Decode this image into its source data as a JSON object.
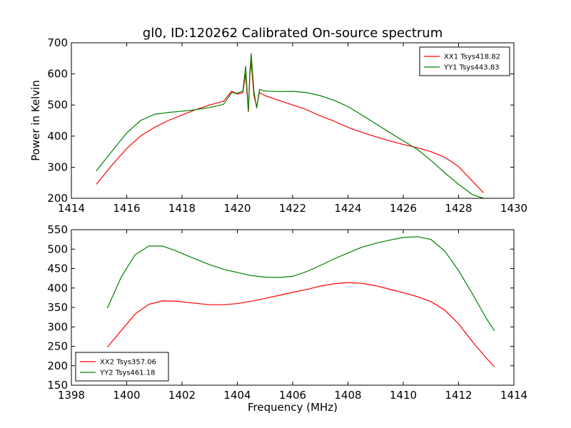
{
  "figure_title": "gl0, ID:120262 Calibrated On-source spectrum",
  "colors": {
    "red": "#ff0000",
    "green": "#008000"
  },
  "chart_data": [
    {
      "type": "line",
      "title": "gl0, ID:120262 Calibrated On-source spectrum",
      "xlabel": "",
      "ylabel": "Power in Kelvin",
      "xlim": [
        1414,
        1430
      ],
      "ylim": [
        200,
        700
      ],
      "xticks": [
        1414,
        1416,
        1418,
        1420,
        1422,
        1424,
        1426,
        1428,
        1430
      ],
      "yticks": [
        200,
        300,
        400,
        500,
        600,
        700
      ],
      "legend_position": "top-right",
      "series": [
        {
          "name": "XX1 Tsys418.82",
          "color": "#ff0000",
          "x": [
            1414.9,
            1415.5,
            1416.0,
            1416.5,
            1417.0,
            1417.5,
            1418.0,
            1418.5,
            1419.0,
            1419.5,
            1419.8,
            1420.0,
            1420.2,
            1420.3,
            1420.4,
            1420.45,
            1420.5,
            1420.6,
            1420.7,
            1420.8,
            1421.0,
            1421.5,
            1422.0,
            1422.5,
            1423.0,
            1423.5,
            1424.0,
            1424.5,
            1425.0,
            1425.5,
            1426.0,
            1426.5,
            1427.0,
            1427.5,
            1428.0,
            1428.5,
            1428.9
          ],
          "y": [
            245,
            310,
            360,
            400,
            428,
            450,
            468,
            485,
            500,
            512,
            545,
            535,
            540,
            600,
            478,
            590,
            640,
            530,
            495,
            540,
            530,
            515,
            500,
            485,
            465,
            448,
            428,
            412,
            398,
            385,
            373,
            363,
            350,
            332,
            302,
            255,
            218
          ]
        },
        {
          "name": "YY1 Tsys443.83",
          "color": "#008000",
          "x": [
            1414.9,
            1415.5,
            1416.0,
            1416.5,
            1417.0,
            1417.5,
            1418.0,
            1418.5,
            1419.0,
            1419.5,
            1419.8,
            1420.0,
            1420.2,
            1420.3,
            1420.4,
            1420.45,
            1420.5,
            1420.6,
            1420.7,
            1420.8,
            1421.0,
            1421.5,
            1422.0,
            1422.5,
            1423.0,
            1423.5,
            1424.0,
            1424.5,
            1425.0,
            1425.5,
            1426.0,
            1426.5,
            1427.0,
            1427.5,
            1428.0,
            1428.5,
            1428.9
          ],
          "y": [
            288,
            355,
            410,
            450,
            470,
            476,
            480,
            485,
            492,
            502,
            540,
            538,
            545,
            625,
            480,
            600,
            665,
            545,
            490,
            550,
            545,
            543,
            544,
            540,
            530,
            515,
            495,
            468,
            440,
            412,
            385,
            358,
            322,
            282,
            245,
            212,
            200
          ]
        }
      ]
    },
    {
      "type": "line",
      "title": "",
      "xlabel": "Frequency (MHz)",
      "ylabel": "",
      "xlim": [
        1398,
        1414
      ],
      "ylim": [
        150,
        550
      ],
      "xticks": [
        1398,
        1400,
        1402,
        1404,
        1406,
        1408,
        1410,
        1412,
        1414
      ],
      "yticks": [
        150,
        200,
        250,
        300,
        350,
        400,
        450,
        500,
        550
      ],
      "legend_position": "bottom-left",
      "series": [
        {
          "name": "XX2 Tsys357.06",
          "color": "#ff0000",
          "x": [
            1399.3,
            1399.8,
            1400.3,
            1400.8,
            1401.3,
            1401.8,
            1402.3,
            1403.0,
            1403.5,
            1404.0,
            1404.5,
            1405.0,
            1405.5,
            1406.0,
            1406.5,
            1407.0,
            1407.5,
            1408.0,
            1408.5,
            1409.0,
            1409.5,
            1410.0,
            1410.5,
            1411.0,
            1411.5,
            1412.0,
            1412.5,
            1413.0,
            1413.3
          ],
          "y": [
            248,
            290,
            333,
            358,
            367,
            366,
            362,
            357,
            357,
            360,
            366,
            373,
            381,
            389,
            396,
            405,
            411,
            414,
            412,
            406,
            397,
            388,
            378,
            365,
            343,
            308,
            262,
            220,
            197
          ]
        },
        {
          "name": "YY2 Tsys461.18",
          "color": "#008000",
          "x": [
            1399.3,
            1399.8,
            1400.3,
            1400.8,
            1401.3,
            1401.8,
            1402.3,
            1403.0,
            1403.5,
            1404.0,
            1404.5,
            1405.0,
            1405.5,
            1406.0,
            1406.5,
            1407.0,
            1407.5,
            1408.0,
            1408.5,
            1409.0,
            1409.5,
            1410.0,
            1410.5,
            1411.0,
            1411.5,
            1412.0,
            1412.5,
            1413.0,
            1413.3
          ],
          "y": [
            348,
            428,
            485,
            508,
            508,
            495,
            480,
            460,
            448,
            440,
            432,
            428,
            427,
            430,
            442,
            458,
            475,
            490,
            505,
            515,
            523,
            530,
            532,
            525,
            495,
            445,
            385,
            322,
            290
          ]
        }
      ]
    }
  ]
}
